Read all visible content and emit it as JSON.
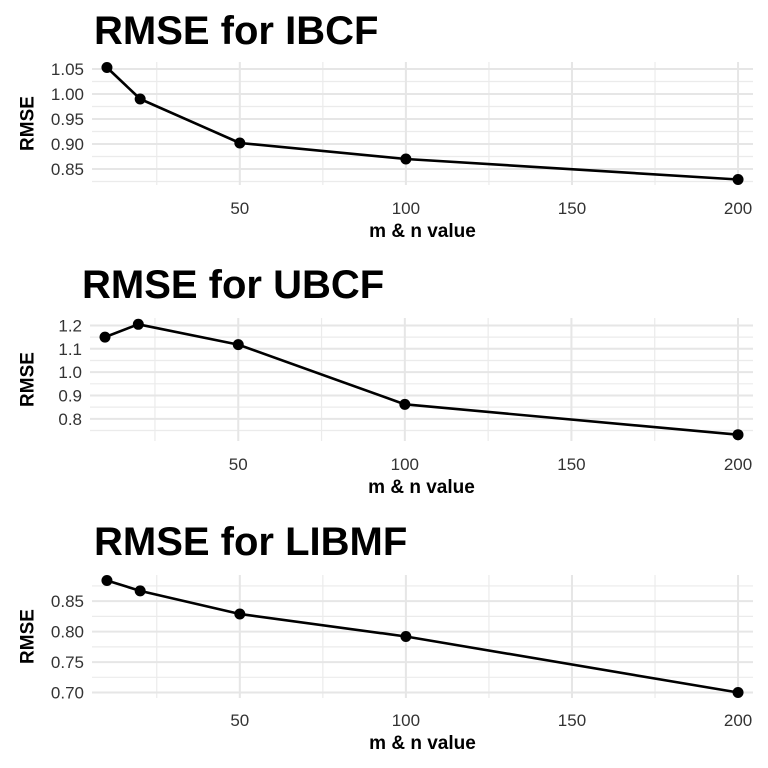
{
  "chart_data": [
    {
      "type": "line",
      "title": "RMSE for IBCF",
      "xlabel": "m & n value",
      "ylabel": "RMSE",
      "x": [
        10,
        20,
        50,
        100,
        200
      ],
      "y": [
        1.053,
        0.99,
        0.902,
        0.87,
        0.829
      ],
      "x_ticks": [
        50,
        100,
        150,
        200
      ],
      "x_tick_labels": [
        "50",
        "100",
        "150",
        "200"
      ],
      "y_ticks": [
        0.85,
        0.9,
        0.95,
        1.0,
        1.05
      ],
      "y_tick_labels": [
        "0.85",
        "0.90",
        "0.95",
        "1.00",
        "1.05"
      ],
      "xlim": [
        5.5,
        204.5
      ],
      "ylim": [
        0.818,
        1.064
      ],
      "grid": true
    },
    {
      "type": "line",
      "title": "RMSE for UBCF",
      "xlabel": "m & n value",
      "ylabel": "RMSE",
      "x": [
        10,
        20,
        50,
        100,
        200
      ],
      "y": [
        1.15,
        1.205,
        1.118,
        0.862,
        0.732
      ],
      "x_ticks": [
        50,
        100,
        150,
        200
      ],
      "x_tick_labels": [
        "50",
        "100",
        "150",
        "200"
      ],
      "y_ticks": [
        0.8,
        0.9,
        1.0,
        1.1,
        1.2
      ],
      "y_tick_labels": [
        "0.8",
        "0.9",
        "1.0",
        "1.1",
        "1.2"
      ],
      "xlim": [
        5.5,
        204.5
      ],
      "ylim": [
        0.705,
        1.232
      ],
      "grid": true
    },
    {
      "type": "line",
      "title": "RMSE for LIBMF",
      "xlabel": "m & n value",
      "ylabel": "RMSE",
      "x": [
        10,
        20,
        50,
        100,
        200
      ],
      "y": [
        0.884,
        0.867,
        0.829,
        0.792,
        0.7
      ],
      "x_ticks": [
        50,
        100,
        150,
        200
      ],
      "x_tick_labels": [
        "50",
        "100",
        "150",
        "200"
      ],
      "y_ticks": [
        0.7,
        0.75,
        0.8,
        0.85
      ],
      "y_tick_labels": [
        "0.70",
        "0.75",
        "0.80",
        "0.85"
      ],
      "xlim": [
        5.5,
        204.5
      ],
      "ylim": [
        0.691,
        0.893
      ],
      "grid": true
    }
  ]
}
